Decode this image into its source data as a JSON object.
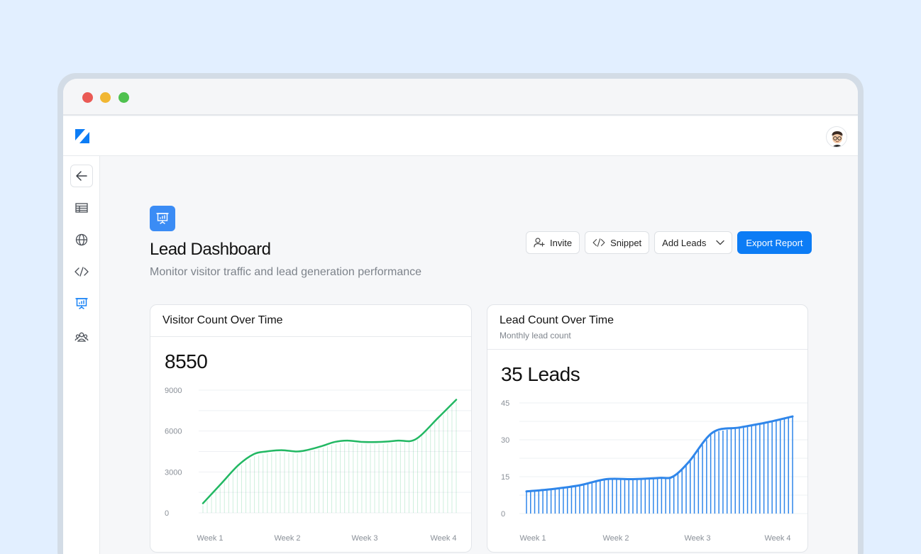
{
  "app": {
    "logo_icon": "brand-logo-icon",
    "avatar_icon": "user-avatar-icon"
  },
  "sidebar": {
    "items": [
      {
        "icon": "arrow-left-icon",
        "name": "back"
      },
      {
        "icon": "table-icon",
        "name": "tables"
      },
      {
        "icon": "globe-icon",
        "name": "websites"
      },
      {
        "icon": "code-icon",
        "name": "code"
      },
      {
        "icon": "presentation-chart-icon",
        "name": "dashboard",
        "active": true
      },
      {
        "icon": "users-group-icon",
        "name": "people"
      }
    ],
    "active_color": "#0c7cf5"
  },
  "page": {
    "title": "Lead Dashboard",
    "subtitle": "Monitor visitor traffic and lead generation performance",
    "icon": "presentation-chart-icon"
  },
  "actions": {
    "invite_label": "Invite",
    "snippet_label": "Snippet",
    "add_leads_label": "Add Leads",
    "export_label": "Export Report"
  },
  "cards": {
    "visitors": {
      "title": "Visitor Count Over Time",
      "value": "8550"
    },
    "leads": {
      "title": "Lead Count Over Time",
      "description": "Monthly lead count",
      "value": "35 Leads"
    }
  },
  "chart_data": [
    {
      "type": "line",
      "color": "#22b863",
      "y_ticks": [
        "9000",
        "6000",
        "3000",
        "0"
      ],
      "ylim": [
        0,
        9000
      ],
      "x_ticks": [
        "Week 1",
        "Week 2",
        "Week 3",
        "Week 4"
      ],
      "x": [
        0,
        0.07,
        0.14,
        0.2,
        0.25,
        0.31,
        0.37,
        0.41,
        0.47,
        0.52,
        0.57,
        0.63,
        0.7,
        0.77,
        0.84,
        0.93,
        1.0
      ],
      "values": [
        700,
        2100,
        3500,
        4300,
        4500,
        4600,
        4500,
        4600,
        4900,
        5200,
        5300,
        5200,
        5200,
        5300,
        5400,
        7000,
        8300
      ]
    },
    {
      "type": "area",
      "color": "#2f86ea",
      "y_ticks": [
        "45",
        "30",
        "15",
        "0"
      ],
      "ylim": [
        0,
        45
      ],
      "x_ticks": [
        "Week 1",
        "Week 2",
        "Week 3",
        "Week 4"
      ],
      "x": [
        0,
        0.1,
        0.2,
        0.3,
        0.4,
        0.5,
        0.55,
        0.61,
        0.7,
        0.8,
        0.9,
        1.0
      ],
      "values": [
        9,
        10,
        11.5,
        14,
        14,
        14.5,
        15,
        21,
        33,
        35,
        37,
        39.5
      ]
    }
  ]
}
